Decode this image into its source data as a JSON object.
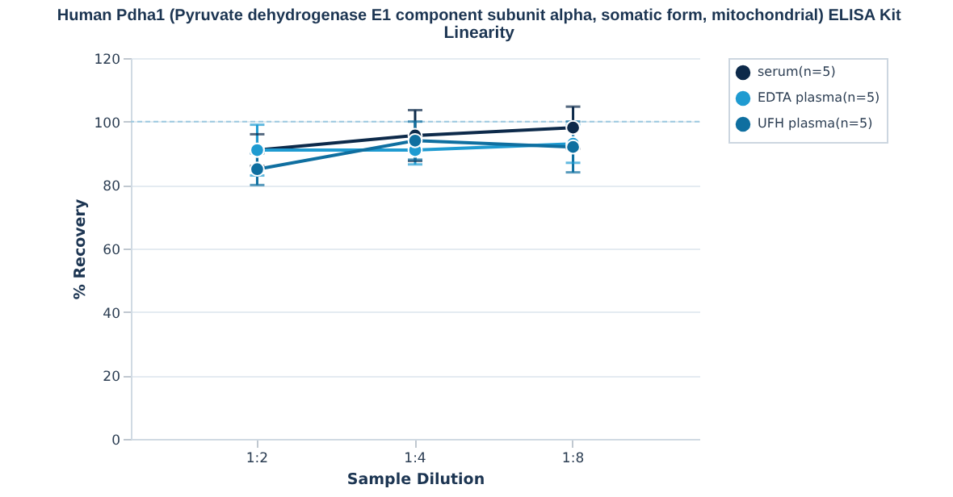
{
  "chart_data": {
    "type": "line",
    "title": "Human Pdha1 (Pyruvate dehydrogenase E1 component subunit alpha, somatic form, mitochondrial) ELISA Kit",
    "subtitle": "Linearity",
    "xlabel": "Sample Dilution",
    "ylabel": "% Recovery",
    "categories": [
      "1:2",
      "1:4",
      "1:8"
    ],
    "series": [
      {
        "name": "serum(n=5)",
        "color": "#0d2a4a",
        "values": [
          91,
          95.6,
          98.1
        ],
        "errors": [
          5,
          8,
          6.6
        ]
      },
      {
        "name": "EDTA plasma(n=5)",
        "color": "#1f9bd1",
        "values": [
          91,
          91,
          93
        ],
        "errors": [
          8,
          4.5,
          6
        ]
      },
      {
        "name": "UFH plasma(n=5)",
        "color": "#0f6fa0",
        "values": [
          85,
          94,
          92
        ],
        "errors": [
          5,
          6,
          8
        ]
      }
    ],
    "ylim": [
      0,
      120
    ],
    "yticks": [
      0,
      20,
      40,
      60,
      80,
      100,
      120
    ],
    "grid": "y",
    "legend": "top right",
    "marker": "circle",
    "line_style": "solid",
    "ref_lines": [
      {
        "axis": "y",
        "value": 100,
        "color": "#9cc9e0",
        "line_style": "dashed"
      }
    ]
  }
}
